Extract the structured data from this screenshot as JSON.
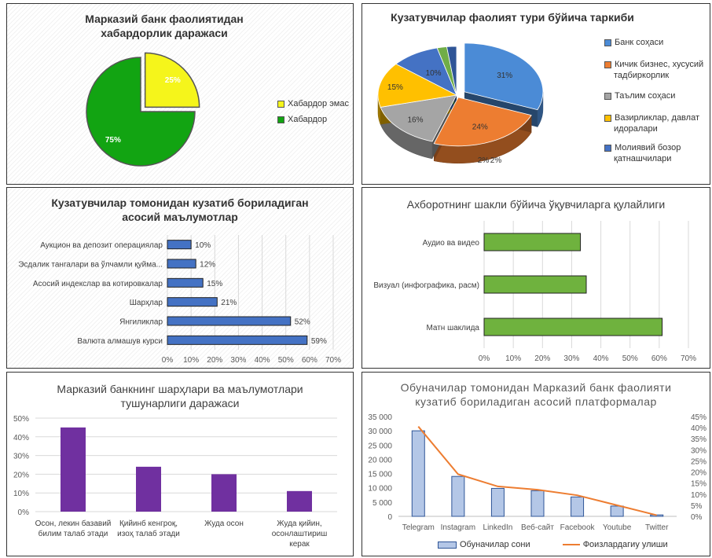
{
  "chart_data": [
    {
      "type": "pie",
      "title": "Марказий банк фаолиятидан хабардорлик даражаси",
      "slices": [
        {
          "label": "Хабардор эмас",
          "value": 25,
          "color": "#f5f51b",
          "data_label": "25%"
        },
        {
          "label": "Хабардор",
          "value": 75,
          "color": "#12a412",
          "data_label": "75%"
        }
      ],
      "legend": "right"
    },
    {
      "type": "pie",
      "title": "Кузатувчилар фаолият тури бўйича таркиби",
      "slices": [
        {
          "label": "Банк соҳаси",
          "value": 31,
          "color": "#4b8bd6",
          "data_label": "31%"
        },
        {
          "label": "Кичик бизнес, хусусий тадбиркорлик",
          "value": 24,
          "color": "#ed7d31",
          "data_label": "24%"
        },
        {
          "label": "Таълим соҳаси",
          "value": 16,
          "color": "#a5a5a5",
          "data_label": "16%"
        },
        {
          "label": "Вазирликлар, давлат идоралари",
          "value": 15,
          "color": "#ffc000",
          "data_label": "15%"
        },
        {
          "label": "Молиявий бозор қатнашчилари",
          "value": 10,
          "color": "#4472c4",
          "data_label": "10%"
        },
        {
          "label": "",
          "value": 2,
          "color": "#70ad47",
          "data_label": "2%"
        },
        {
          "label": "",
          "value": 2,
          "color": "#2f5597",
          "data_label": "2%"
        }
      ],
      "legend": "right"
    },
    {
      "type": "bar",
      "orientation": "horizontal",
      "title": "Кузатувчилар томонидан кузатиб бориладиган асосий маълумотлар",
      "categories": [
        "Аукцион ва депозит операциялар",
        "Эсдалик тангалари ва ўлчамли қуйма...",
        "Асосий индекслар ва котировкалар",
        "Шарҳлар",
        "Янгиликлар",
        "Валюта алмашув курси"
      ],
      "values": [
        10,
        12,
        15,
        21,
        52,
        59
      ],
      "data_labels": [
        "10%",
        "12%",
        "15%",
        "21%",
        "52%",
        "59%"
      ],
      "xlim": [
        0,
        70
      ],
      "ticks": [
        "0%",
        "10%",
        "20%",
        "30%",
        "40%",
        "50%",
        "60%",
        "70%"
      ],
      "color": "#4472c4"
    },
    {
      "type": "bar",
      "orientation": "horizontal",
      "title": "Ахборотнинг шакли бўйича ўқувчиларга қулайлиги",
      "categories": [
        "Аудио ва видео",
        "Визуал (инфографика, расм)",
        "Матн шаклида"
      ],
      "values": [
        33,
        35,
        61
      ],
      "xlim": [
        0,
        70
      ],
      "ticks": [
        "0%",
        "10%",
        "20%",
        "30%",
        "40%",
        "50%",
        "60%",
        "70%"
      ],
      "color": "#6fb23e"
    },
    {
      "type": "bar",
      "title": "Марказий банкнинг шарҳлари ва маълумотлари тушунарлиги даражаси",
      "categories": [
        [
          "Осон, лекин базавий",
          "билим талаб этади"
        ],
        [
          "Қийинб кенгроқ,",
          "изоҳ талаб этади"
        ],
        [
          "Жуда осон"
        ],
        [
          "Жуда қийин,",
          "осонлаштириш",
          "керак"
        ]
      ],
      "values": [
        45,
        24,
        20,
        11
      ],
      "ylim": [
        0,
        50
      ],
      "ticks": [
        "0%",
        "10%",
        "20%",
        "30%",
        "40%",
        "50%"
      ],
      "color": "#7030a0"
    },
    {
      "type": "bar",
      "title": "Обуначилар томонидан Марказий банк фаолияти кузатиб бориладиган асосий платформалар",
      "categories": [
        "Telegram",
        "Instagram",
        "LinkedIn",
        "Веб-сайт",
        "Facebook",
        "Youtube",
        "Twitter"
      ],
      "series": [
        {
          "name": "Обуначилар сони",
          "type": "bar",
          "axis": "left",
          "values": [
            30000,
            14000,
            9800,
            9000,
            6800,
            3600,
            500
          ]
        },
        {
          "name": "Фоизлардагиу улиши",
          "type": "line",
          "axis": "right",
          "values": [
            40.5,
            19,
            13.5,
            12,
            9.5,
            5,
            0.5
          ]
        }
      ],
      "ylim": [
        0,
        35000
      ],
      "y2lim": [
        0,
        45
      ],
      "left_ticks": [
        "0",
        "5 000",
        "10 000",
        "15 000",
        "20 000",
        "25 000",
        "30 000",
        "35 000"
      ],
      "right_ticks": [
        "0%",
        "5%",
        "10%",
        "15%",
        "20%",
        "25%",
        "30%",
        "35%",
        "40%",
        "45%"
      ]
    }
  ]
}
